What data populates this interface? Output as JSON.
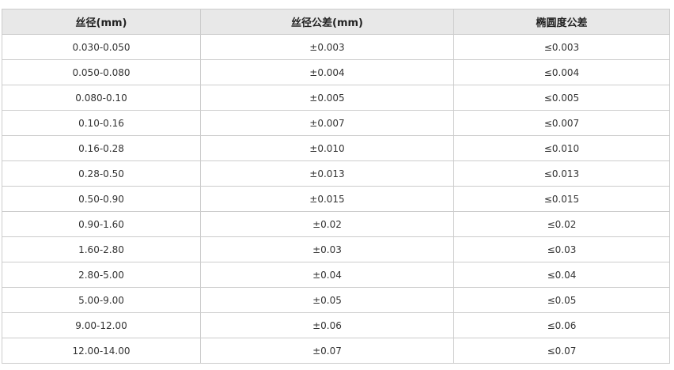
{
  "table": {
    "headers": [
      "丝径(mm)",
      "丝径公差(mm)",
      "椭圆度公差"
    ],
    "rows": [
      [
        "0.030-0.050",
        "±0.003",
        "≤0.003"
      ],
      [
        "0.050-0.080",
        "±0.004",
        "≤0.004"
      ],
      [
        "0.080-0.10",
        "±0.005",
        "≤0.005"
      ],
      [
        "0.10-0.16",
        "±0.007",
        "≤0.007"
      ],
      [
        "0.16-0.28",
        "±0.010",
        "≤0.010"
      ],
      [
        "0.28-0.50",
        "±0.013",
        "≤0.013"
      ],
      [
        "0.50-0.90",
        "±0.015",
        "≤0.015"
      ],
      [
        "0.90-1.60",
        "±0.02",
        "≤0.02"
      ],
      [
        "1.60-2.80",
        "±0.03",
        "≤0.03"
      ],
      [
        "2.80-5.00",
        "±0.04",
        "≤0.04"
      ],
      [
        "5.00-9.00",
        "±0.05",
        "≤0.05"
      ],
      [
        "9.00-12.00",
        "±0.06",
        "≤0.06"
      ],
      [
        "12.00-14.00",
        "±0.07",
        "≤0.07"
      ]
    ]
  }
}
